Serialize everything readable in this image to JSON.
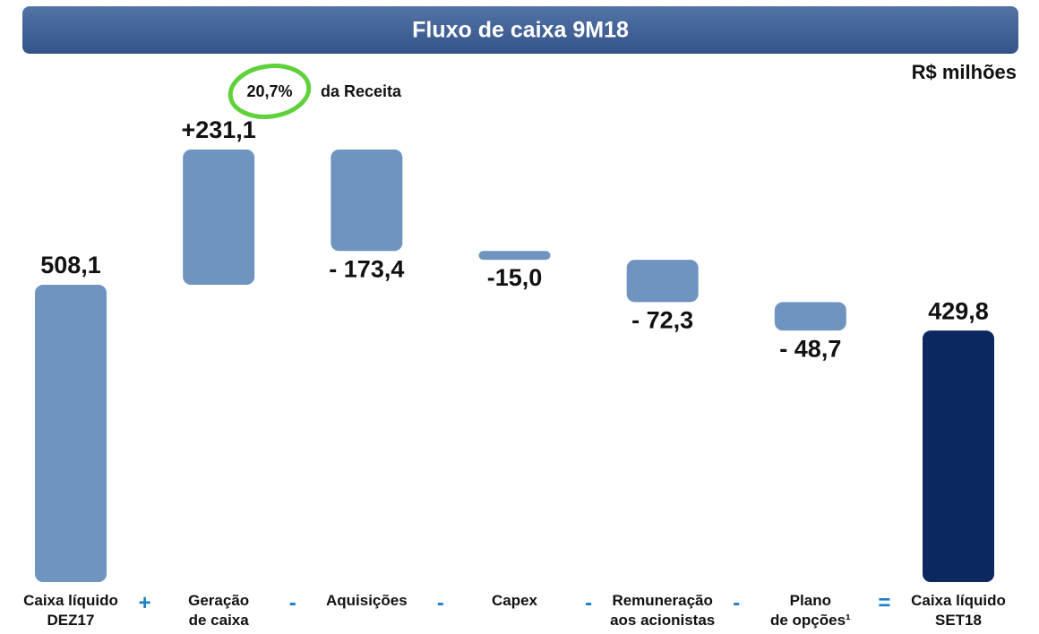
{
  "chart_data": {
    "type": "waterfall",
    "title": "Fluxo de caixa 9M18",
    "unit_label": "R$ milhões",
    "annotation": {
      "highlight": "20,7%",
      "text": "da Receita"
    },
    "categories": [
      "Caixa líquido\nDEZ17",
      "Geração\nde caixa",
      "Aquisições",
      "Capex",
      "Remuneração\naos acionistas",
      "Plano\nde opções¹",
      "Caixa líquido\nSET18"
    ],
    "operators": [
      "+",
      "-",
      "-",
      "-",
      "-",
      "="
    ],
    "measures": [
      "absolute",
      "relative",
      "relative",
      "relative",
      "relative",
      "relative",
      "total"
    ],
    "values": [
      508.1,
      231.1,
      -173.4,
      -15.0,
      -72.3,
      -48.7,
      429.8
    ],
    "value_labels": [
      "508,1",
      "+231,1",
      "- 173,4",
      "-15,0",
      "- 72,3",
      "- 48,7",
      "429,8"
    ],
    "color": "#7094c0",
    "total_color": "#0b2860"
  }
}
